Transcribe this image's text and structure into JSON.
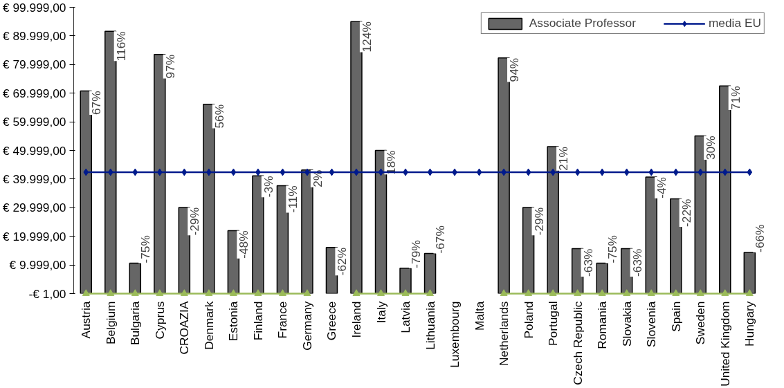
{
  "chart_data": {
    "type": "bar",
    "categories": [
      "Austria",
      "Belgium",
      "Bulgaria",
      "Cyprus",
      "CROAZIA",
      "Denmark",
      "Estonia",
      "Finland",
      "France",
      "Germany",
      "Greece",
      "Ireland",
      "Italy",
      "Latvia",
      "Lithuania",
      "Luxembourg",
      "Malta",
      "Netherlands",
      "Poland",
      "Portugal",
      "Czech Republic",
      "Romania",
      "Slovakia",
      "Slovenia",
      "Spain",
      "Sweden",
      "United Kingdom",
      "Hungary"
    ],
    "series": [
      {
        "name": "Associate Professor",
        "color": "#666666",
        "values": [
          70800,
          91600,
          10600,
          83500,
          30100,
          66100,
          22000,
          41100,
          37700,
          43200,
          16100,
          95000,
          50000,
          8900,
          14000,
          null,
          null,
          82300,
          30100,
          51300,
          15700,
          10600,
          15700,
          40700,
          33100,
          55100,
          72500,
          14400
        ]
      },
      {
        "name": "media EU",
        "type": "line",
        "color": "#001a8c",
        "marker": "diamond",
        "values": [
          42400,
          42400,
          42400,
          42400,
          42400,
          42400,
          42400,
          42400,
          42400,
          42400,
          42400,
          42400,
          42400,
          42400,
          42400,
          42400,
          42400,
          42400,
          42400,
          42400,
          42400,
          42400,
          42400,
          42400,
          42400,
          42400,
          42400,
          42400
        ]
      },
      {
        "type": "line",
        "color": "#9bbb59",
        "marker": "triangle",
        "values": [
          0,
          0,
          0,
          0,
          0,
          0,
          0,
          0,
          0,
          0,
          null,
          0,
          0,
          0,
          0,
          null,
          null,
          0,
          0,
          0,
          0,
          0,
          0,
          0,
          0,
          0,
          0,
          0
        ]
      }
    ],
    "annotations": [
      {
        "text": "67%",
        "x": "Austria",
        "y": 70800
      },
      {
        "text": "116%",
        "x": "Belgium",
        "y": 91600
      },
      {
        "text": "-75%",
        "x": "Bulgaria",
        "y": 10600
      },
      {
        "text": "97%",
        "x": "Cyprus",
        "y": 83500
      },
      {
        "text": "-29%",
        "x": "CROAZIA",
        "y": 30100
      },
      {
        "text": "56%",
        "x": "Denmark",
        "y": 66100
      },
      {
        "text": "-48%",
        "x": "Estonia",
        "y": 22000
      },
      {
        "text": "-3%",
        "x": "Finland",
        "y": 41100
      },
      {
        "text": "-11%",
        "x": "France",
        "y": 37700
      },
      {
        "text": "2%",
        "x": "Germany",
        "y": 43200
      },
      {
        "text": "-62%",
        "x": "Greece",
        "y": 16100
      },
      {
        "text": "124%",
        "x": "Ireland",
        "y": 95000
      },
      {
        "text": "18%",
        "x": "Italy",
        "y": 50000
      },
      {
        "text": "-79%",
        "x": "Latvia",
        "y": 8900
      },
      {
        "text": "-67%",
        "x": "Lithuania",
        "y": 14000
      },
      {
        "text": "94%",
        "x": "Netherlands",
        "y": 82300
      },
      {
        "text": "-29%",
        "x": "Poland",
        "y": 30100
      },
      {
        "text": "21%",
        "x": "Portugal",
        "y": 51300
      },
      {
        "text": "-63%",
        "x": "Czech Republic",
        "y": 15700
      },
      {
        "text": "-75%",
        "x": "Romania",
        "y": 10600
      },
      {
        "text": "-63%",
        "x": "Slovakia",
        "y": 15700
      },
      {
        "text": "-4%",
        "x": "Slovenia",
        "y": 40700
      },
      {
        "text": "-22%",
        "x": "Spain",
        "y": 33100
      },
      {
        "text": "30%",
        "x": "Sweden",
        "y": 55100
      },
      {
        "text": "71%",
        "x": "United Kingdom",
        "y": 72500
      },
      {
        "text": "-66%",
        "x": "Hungary",
        "y": 14400
      }
    ],
    "ylim": [
      -1,
      99999
    ],
    "yticks": [
      {
        "value": -1,
        "label": "-€ 1,00"
      },
      {
        "value": 9999,
        "label": "€ 9.999,00"
      },
      {
        "value": 19999,
        "label": "€ 19.999,00"
      },
      {
        "value": 29999,
        "label": "€ 29.999,00"
      },
      {
        "value": 39999,
        "label": "€ 39.999,00"
      },
      {
        "value": 49999,
        "label": "€ 49.999,00"
      },
      {
        "value": 59999,
        "label": "€ 59.999,00"
      },
      {
        "value": 69999,
        "label": "€ 69.999,00"
      },
      {
        "value": 79999,
        "label": "€ 79.999,00"
      },
      {
        "value": 89999,
        "label": "€ 89.999,00"
      },
      {
        "value": 99999,
        "label": "€ 99.999,00"
      }
    ],
    "grid": false,
    "legend": "top right"
  }
}
